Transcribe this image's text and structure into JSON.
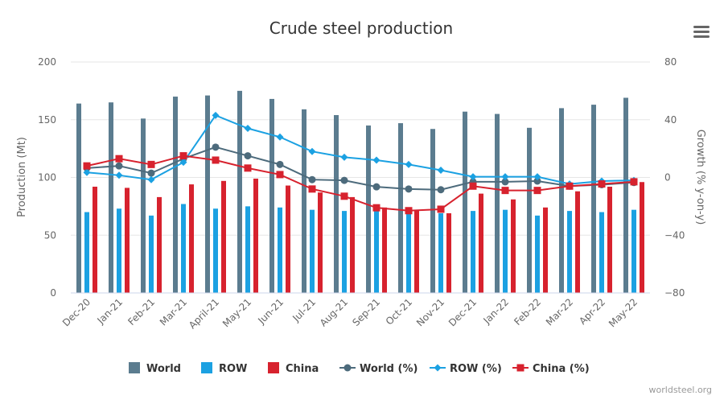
{
  "menu": {
    "icon": "hamburger-menu-icon"
  },
  "credit": "worldsteel.org",
  "chart_data": {
    "type": "bar",
    "title": "Crude steel production",
    "categories": [
      "Dec-20",
      "Jan-21",
      "Feb-21",
      "Mar-21",
      "April-21",
      "May-21",
      "Jun-21",
      "Jul-21",
      "Aug-21",
      "Sep-21",
      "Oct-21",
      "Nov-21",
      "Dec-21",
      "Jan-22",
      "Feb-22",
      "Mar-22",
      "Apr-22",
      "May-22"
    ],
    "ylabel_left": "Production (Mt)",
    "ylabel_right": "Growth (% y-on-y)",
    "ylim_left": [
      0,
      200
    ],
    "ylim_right": [
      -80,
      80
    ],
    "yticks_left": [
      "0",
      "50",
      "100",
      "150",
      "200"
    ],
    "yticks_right": [
      "−80",
      "−40",
      "0",
      "40",
      "80"
    ],
    "grid": true,
    "legend_position": "bottom",
    "bar_series": [
      {
        "name": "World",
        "axis": "left",
        "color": "#5b7c8f",
        "values": [
          164,
          165,
          151,
          170,
          171,
          175,
          168,
          159,
          154,
          145,
          147,
          142,
          157,
          155,
          143,
          160,
          163,
          169
        ]
      },
      {
        "name": "ROW",
        "axis": "left",
        "color": "#1ba1e2",
        "values": [
          70,
          73,
          67,
          77,
          73,
          75,
          74,
          72,
          71,
          71,
          69,
          69,
          71,
          72,
          67,
          71,
          70,
          72
        ]
      },
      {
        "name": "China",
        "axis": "left",
        "color": "#d7222e",
        "values": [
          92,
          91,
          83,
          94,
          97,
          99,
          93,
          87,
          83,
          74,
          72,
          69,
          86,
          81,
          74,
          88,
          92,
          96
        ]
      }
    ],
    "line_series": [
      {
        "name": "World (%)",
        "axis": "right",
        "color": "#4d6b7c",
        "marker": "circle",
        "values": [
          6.5,
          8,
          3,
          13,
          21,
          15,
          9,
          -1.5,
          -2,
          -6.5,
          -8,
          -8.5,
          -3,
          -3,
          -2.5,
          -6,
          -5,
          -3.5
        ]
      },
      {
        "name": "ROW (%)",
        "axis": "right",
        "color": "#1ba1e2",
        "marker": "diamond",
        "values": [
          3.5,
          1.5,
          -1.5,
          10.5,
          43,
          34,
          28,
          18,
          14,
          12,
          9,
          5,
          0.5,
          0.5,
          0.5,
          -4.5,
          -2.5,
          -2
        ]
      },
      {
        "name": "China (%)",
        "axis": "right",
        "color": "#d7222e",
        "marker": "square",
        "values": [
          8,
          13,
          9,
          15,
          12,
          6.5,
          2,
          -8,
          -13,
          -21,
          -23,
          -22,
          -6,
          -9,
          -9,
          -6,
          -4.5,
          -3
        ]
      }
    ]
  }
}
